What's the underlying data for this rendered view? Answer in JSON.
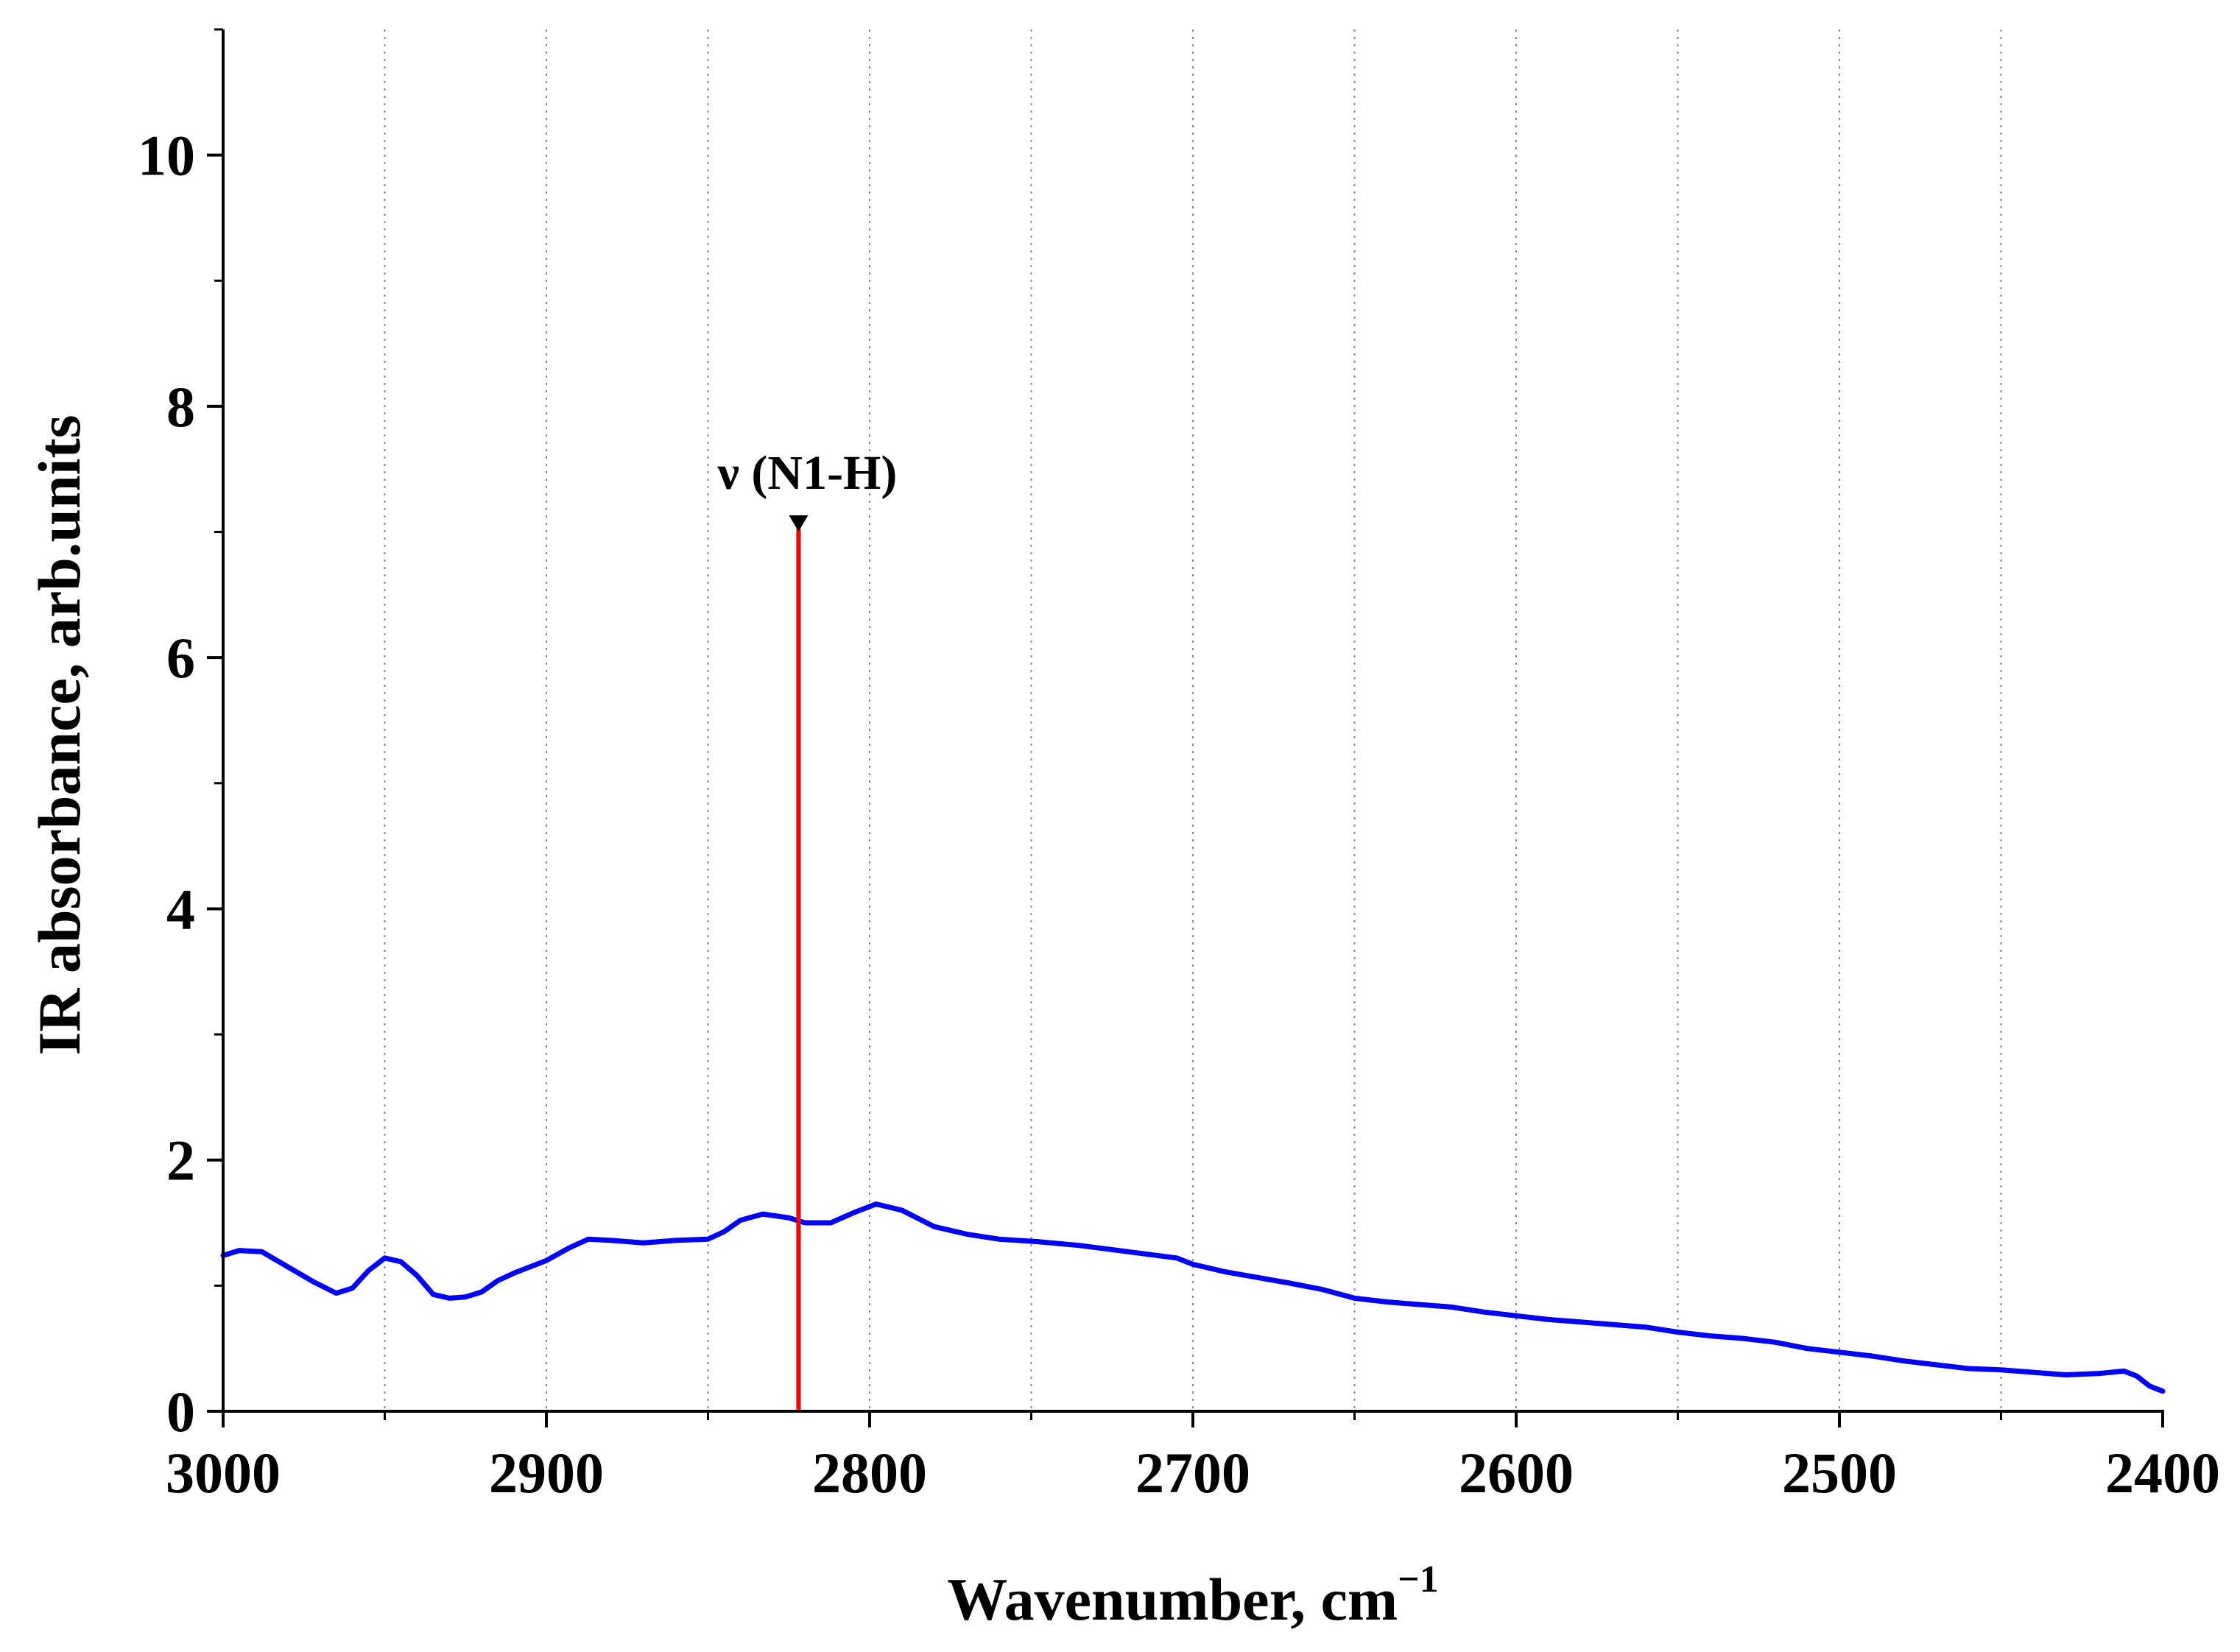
{
  "chart_data": {
    "type": "line",
    "title": "",
    "xlabel": "Wavenumber, cm",
    "xlabel_superscript": "−1",
    "ylabel": "IR absorbance, arb.units",
    "xlim": [
      3000,
      2400
    ],
    "ylim": [
      0,
      11
    ],
    "x_reversed": true,
    "x_ticks": [
      3000,
      2900,
      2800,
      2700,
      2600,
      2500,
      2400
    ],
    "x_tick_labels": [
      "3000",
      "2900",
      "2800",
      "2700",
      "2600",
      "2500",
      "2400"
    ],
    "x_minor_ticks": [
      2950,
      2850,
      2750,
      2650,
      2550,
      2450
    ],
    "y_ticks": [
      0,
      2,
      4,
      6,
      8,
      10
    ],
    "y_tick_labels": [
      "0",
      "2",
      "4",
      "6",
      "8",
      "10"
    ],
    "y_minor_ticks": [
      1,
      3,
      5,
      7,
      9,
      11
    ],
    "grid": "vertical dotted at every 50 cm-1",
    "legend": "none",
    "series": [
      {
        "color": "#0000ff",
        "x": [
          3000,
          2995,
          2988,
          2980,
          2972,
          2965,
          2960,
          2955,
          2950,
          2945,
          2940,
          2935,
          2930,
          2925,
          2920,
          2915,
          2910,
          2900,
          2893,
          2887,
          2880,
          2870,
          2860,
          2850,
          2845,
          2840,
          2833,
          2825,
          2820,
          2812,
          2805,
          2798,
          2790,
          2780,
          2770,
          2760,
          2748,
          2735,
          2720,
          2705,
          2700,
          2690,
          2670,
          2660,
          2650,
          2640,
          2630,
          2620,
          2610,
          2600,
          2590,
          2580,
          2570,
          2560,
          2550,
          2540,
          2530,
          2520,
          2510,
          2500,
          2490,
          2480,
          2470,
          2460,
          2450,
          2440,
          2430,
          2420,
          2412,
          2408,
          2404,
          2400
        ],
        "y": [
          1.24,
          1.28,
          1.27,
          1.15,
          1.03,
          0.94,
          0.98,
          1.12,
          1.22,
          1.19,
          1.08,
          0.93,
          0.9,
          0.91,
          0.95,
          1.04,
          1.1,
          1.2,
          1.3,
          1.37,
          1.36,
          1.34,
          1.36,
          1.37,
          1.43,
          1.52,
          1.57,
          1.54,
          1.5,
          1.5,
          1.58,
          1.65,
          1.6,
          1.47,
          1.41,
          1.37,
          1.35,
          1.32,
          1.27,
          1.22,
          1.17,
          1.11,
          1.02,
          0.97,
          0.9,
          0.87,
          0.85,
          0.83,
          0.79,
          0.76,
          0.73,
          0.71,
          0.69,
          0.67,
          0.63,
          0.6,
          0.58,
          0.55,
          0.5,
          0.47,
          0.44,
          0.4,
          0.37,
          0.34,
          0.33,
          0.31,
          0.29,
          0.3,
          0.32,
          0.28,
          0.2,
          0.16
        ]
      }
    ],
    "annotations": [
      {
        "label": "ν (N1-H)",
        "x": 2822,
        "y_top": 7.05,
        "color": "#ff0000",
        "marker": "down-triangle"
      }
    ]
  }
}
